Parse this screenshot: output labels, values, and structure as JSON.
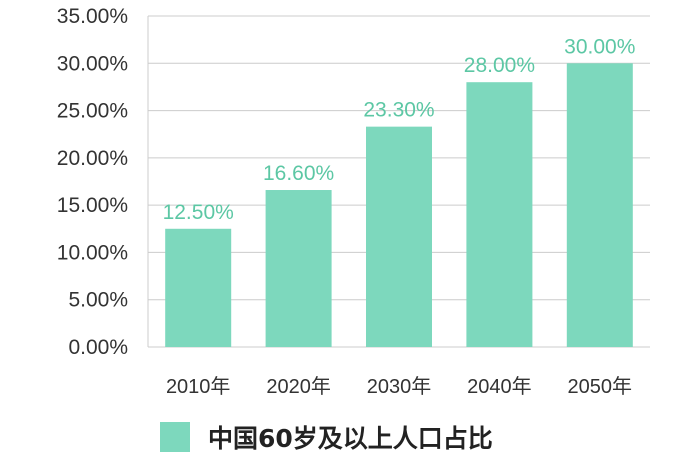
{
  "chart_data": {
    "type": "bar",
    "categories": [
      "2010年",
      "2020年",
      "2030年",
      "2040年",
      "2050年"
    ],
    "series": [
      {
        "name": "中国60岁及以上人口占比",
        "values": [
          12.5,
          16.6,
          23.3,
          28.0,
          30.0
        ],
        "labels": [
          "12.50%",
          "16.60%",
          "23.30%",
          "28.00%",
          "30.00%"
        ],
        "color": "#7dd8bd"
      }
    ],
    "ylim": [
      0,
      35
    ],
    "yticks": [
      0,
      5,
      10,
      15,
      20,
      25,
      30,
      35
    ],
    "ytick_labels": [
      "0.00%",
      "5.00%",
      "10.00%",
      "15.00%",
      "20.00%",
      "25.00%",
      "30.00%",
      "35.00%"
    ],
    "grid": true,
    "legend_position": "bottom",
    "data_label_color": "#5cc7a4",
    "grid_color": "#cccccc",
    "text_color": "#333333"
  }
}
